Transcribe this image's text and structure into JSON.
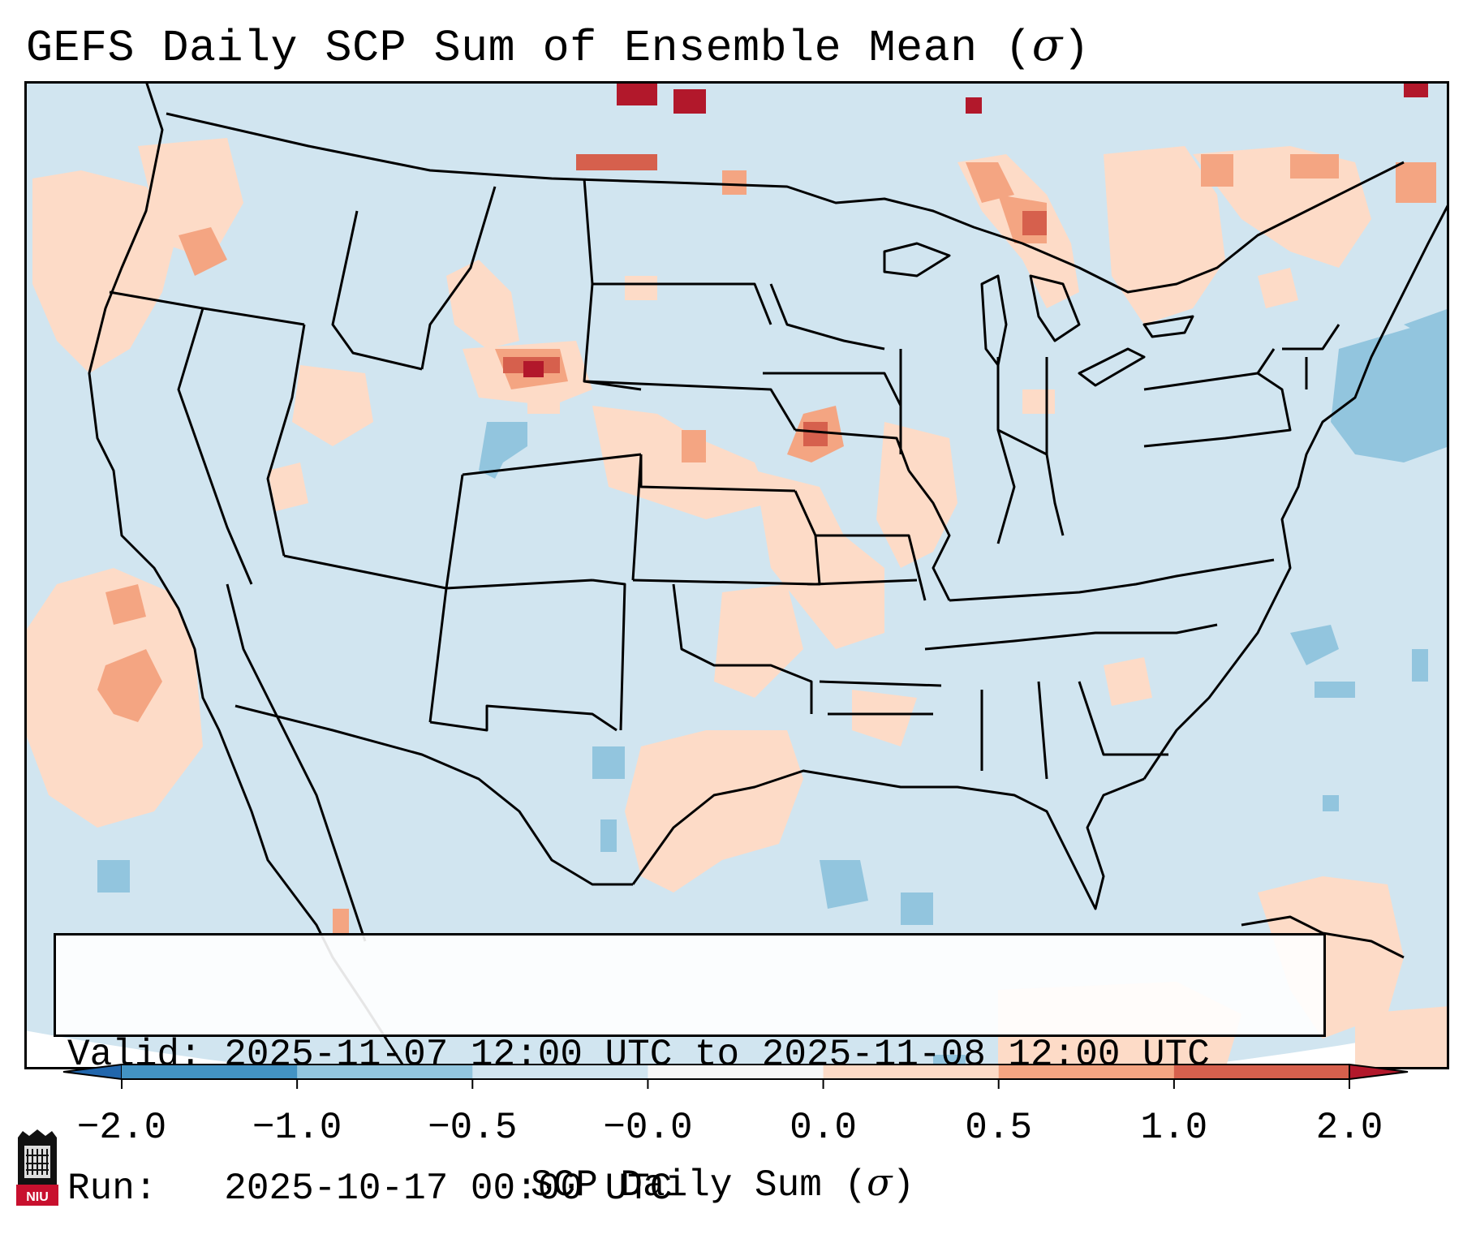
{
  "title": "GEFS Daily SCP Sum of Ensemble Mean (",
  "title_symbol": "σ",
  "title_close": ")",
  "legend": {
    "valid_label": "Valid:",
    "valid_value": "2025-11-07 12:00 UTC to 2025-11-08 12:00 UTC",
    "run_label": "Run:",
    "run_value": "2025-10-17 00:00 UTC"
  },
  "colorbar": {
    "ticks": [
      "−2.0",
      "−1.0",
      "−0.5",
      "−0.0",
      "0.0",
      "0.5",
      "1.0",
      "2.0"
    ],
    "bins": [
      {
        "from": -2.0,
        "to": -1.0,
        "color": "#4393c3"
      },
      {
        "from": -1.0,
        "to": -0.5,
        "color": "#92c5de"
      },
      {
        "from": -0.5,
        "to": -0.0,
        "color": "#d1e5f0"
      },
      {
        "from": -0.0,
        "to": 0.0,
        "color": "#f7f7f7"
      },
      {
        "from": 0.0,
        "to": 0.5,
        "color": "#fddbc7"
      },
      {
        "from": 0.5,
        "to": 1.0,
        "color": "#f4a582"
      },
      {
        "from": 1.0,
        "to": 2.0,
        "color": "#d6604d"
      }
    ],
    "under_color": "#2166ac",
    "over_color": "#b2182b",
    "label": "SCP Daily Sum (",
    "label_symbol": "σ",
    "label_close": ")"
  },
  "logo_text": "NIU",
  "colors": {
    "background_field": "#d1e5f0",
    "weak_positive": "#fddbc7",
    "moderate_positive": "#f4a582",
    "strong_positive": "#d6604d",
    "extreme_positive": "#b2182b",
    "weak_negative": "#92c5de",
    "ocean_outside": "#ffffff"
  }
}
